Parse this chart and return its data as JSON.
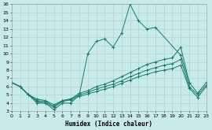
{
  "xlabel": "Humidex (Indice chaleur)",
  "bg_color": "#c8eae8",
  "grid_color": "#aacfcc",
  "line_color": "#1a7a6e",
  "xlim": [
    0,
    23
  ],
  "ylim": [
    3,
    16
  ],
  "xtick_labels": [
    "0",
    "1",
    "2",
    "3",
    "4",
    "5",
    "6",
    "7",
    "8",
    "9",
    "10",
    "11",
    "12",
    "13",
    "14",
    "15",
    "16",
    "17",
    "18",
    "19",
    "20",
    "21",
    "22",
    "23"
  ],
  "xticks": [
    0,
    1,
    2,
    3,
    4,
    5,
    6,
    7,
    8,
    9,
    10,
    11,
    12,
    13,
    14,
    15,
    16,
    17,
    18,
    19,
    20,
    21,
    22,
    23
  ],
  "yticks": [
    3,
    4,
    5,
    6,
    7,
    8,
    9,
    10,
    11,
    12,
    13,
    14,
    15,
    16
  ],
  "line1_x": [
    0,
    1,
    2,
    3,
    4,
    5,
    6,
    7,
    8,
    9,
    10,
    11,
    12,
    13,
    14,
    15,
    16,
    17,
    20,
    21
  ],
  "line1_y": [
    6.5,
    6.0,
    5.0,
    4.0,
    4.0,
    3.2,
    4.0,
    4.0,
    5.0,
    10.0,
    11.5,
    11.8,
    10.8,
    12.5,
    16.0,
    14.0,
    13.0,
    13.2,
    9.8,
    6.5
  ],
  "line2_x": [
    0,
    1,
    2,
    3,
    4,
    5,
    6,
    7,
    8,
    9,
    10,
    11,
    12,
    13,
    14,
    15,
    16,
    17,
    18,
    19,
    20,
    21,
    22,
    23
  ],
  "line2_y": [
    6.5,
    6.0,
    5.0,
    4.5,
    4.3,
    3.8,
    4.3,
    4.5,
    5.2,
    5.5,
    6.0,
    6.3,
    6.7,
    7.2,
    7.7,
    8.2,
    8.7,
    9.0,
    9.3,
    9.5,
    10.8,
    6.5,
    5.2,
    6.5
  ],
  "line3_x": [
    0,
    1,
    2,
    3,
    4,
    5,
    6,
    7,
    8,
    9,
    10,
    11,
    12,
    13,
    14,
    15,
    16,
    17,
    18,
    19,
    20,
    21,
    22,
    23
  ],
  "line3_y": [
    6.5,
    6.0,
    5.0,
    4.3,
    4.2,
    3.6,
    4.3,
    4.5,
    5.0,
    5.3,
    5.7,
    6.0,
    6.3,
    6.7,
    7.2,
    7.6,
    8.0,
    8.3,
    8.6,
    8.8,
    9.3,
    6.0,
    5.0,
    6.2
  ],
  "line4_x": [
    0,
    1,
    2,
    3,
    4,
    5,
    6,
    7,
    8,
    9,
    10,
    11,
    12,
    13,
    14,
    15,
    16,
    17,
    18,
    19,
    20,
    21,
    22,
    23
  ],
  "line4_y": [
    6.5,
    6.0,
    5.0,
    4.2,
    4.0,
    3.5,
    4.2,
    4.4,
    4.8,
    5.1,
    5.4,
    5.7,
    6.0,
    6.4,
    6.8,
    7.2,
    7.5,
    7.8,
    8.0,
    8.2,
    8.6,
    5.8,
    4.7,
    6.0
  ]
}
